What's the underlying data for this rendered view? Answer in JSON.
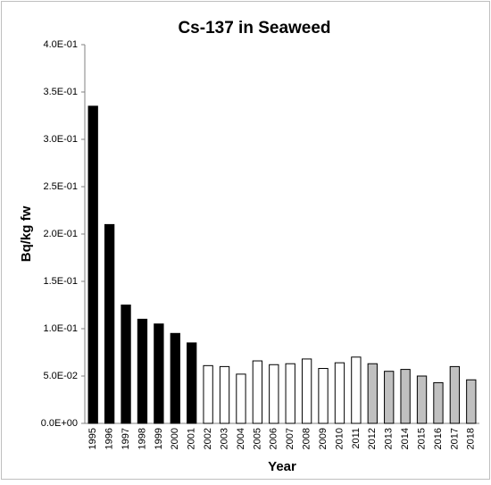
{
  "chart_data": {
    "type": "bar",
    "title": "Cs-137 in Seaweed",
    "x_label": "Year",
    "y_label": "Bq/kg fw",
    "categories": [
      "1995",
      "1996",
      "1997",
      "1998",
      "1999",
      "2000",
      "2001",
      "2002",
      "2003",
      "2004",
      "2005",
      "2006",
      "2007",
      "2008",
      "2009",
      "2010",
      "2011",
      "2012",
      "2013",
      "2014",
      "2015",
      "2016",
      "2017",
      "2018"
    ],
    "values": [
      0.335,
      0.21,
      0.125,
      0.11,
      0.105,
      0.095,
      0.085,
      0.061,
      0.06,
      0.052,
      0.066,
      0.062,
      0.063,
      0.068,
      0.058,
      0.064,
      0.07,
      0.063,
      0.055,
      0.057,
      0.05,
      0.043,
      0.06,
      0.046
    ],
    "colors": [
      "#000000",
      "#000000",
      "#000000",
      "#000000",
      "#000000",
      "#000000",
      "#000000",
      "#ffffff",
      "#ffffff",
      "#ffffff",
      "#ffffff",
      "#ffffff",
      "#ffffff",
      "#ffffff",
      "#ffffff",
      "#ffffff",
      "#ffffff",
      "#c0c0c0",
      "#c0c0c0",
      "#c0c0c0",
      "#c0c0c0",
      "#c0c0c0",
      "#c0c0c0",
      "#c0c0c0"
    ],
    "ylim": [
      0,
      0.4
    ],
    "yticks": [
      {
        "value": 0,
        "label": "0.0E+00"
      },
      {
        "value": 0.05,
        "label": "5.0E-02"
      },
      {
        "value": 0.1,
        "label": "1.0E-01"
      },
      {
        "value": 0.15,
        "label": "1.5E-01"
      },
      {
        "value": 0.2,
        "label": "2.0E-01"
      },
      {
        "value": 0.25,
        "label": "2.5E-01"
      },
      {
        "value": 0.3,
        "label": "3.0E-01"
      },
      {
        "value": 0.35,
        "label": "3.5E-01"
      },
      {
        "value": 0.4,
        "label": "4.0E-01"
      }
    ],
    "grid": false
  }
}
